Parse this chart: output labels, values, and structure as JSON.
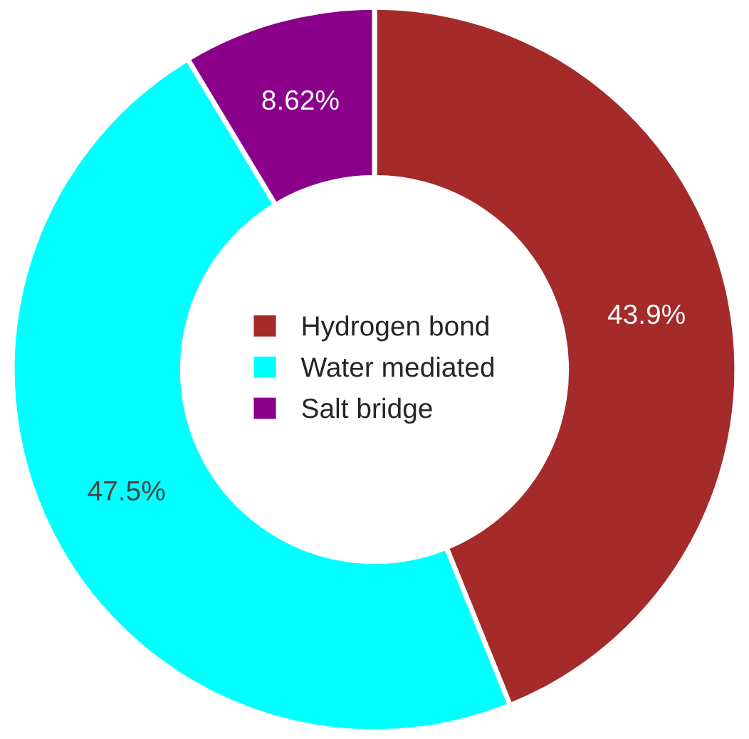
{
  "chart_data": {
    "type": "donut",
    "categories": [
      "Hydrogen bond",
      "Water mediated",
      "Salt bridge"
    ],
    "values": [
      43.9,
      47.5,
      8.62
    ],
    "value_labels": [
      "43.9%",
      "47.5%",
      "8.62%"
    ],
    "colors": [
      "#a52a2a",
      "#00ffff",
      "#8b008b"
    ],
    "legend": "center"
  }
}
